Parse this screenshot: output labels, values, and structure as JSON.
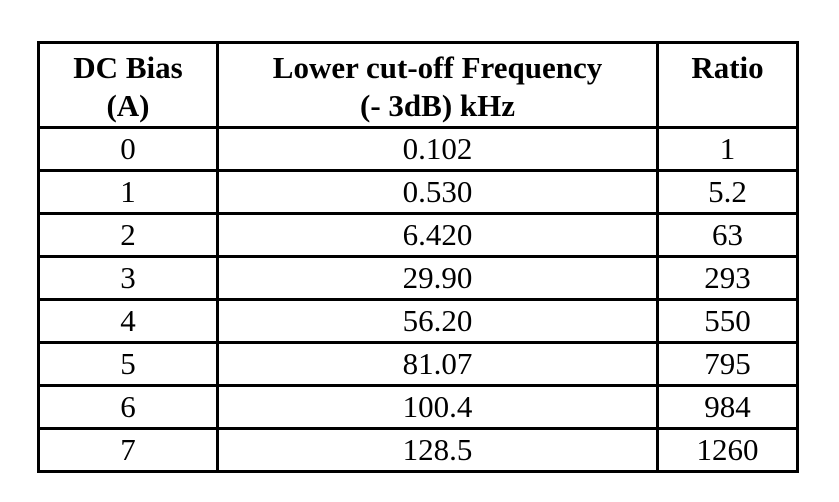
{
  "colors": {
    "border": "#000000",
    "text": "#000000",
    "background": "#ffffff"
  },
  "table": {
    "header": {
      "dc_bias": {
        "line1": "DC Bias",
        "line2": "(A)"
      },
      "frequency": {
        "line1": "Lower cut-off Frequency",
        "line2": "(- 3dB) kHz"
      },
      "ratio": {
        "line1": "Ratio",
        "line2": ""
      }
    },
    "rows": [
      {
        "dc_bias": "0",
        "frequency": "0.102",
        "ratio": "1"
      },
      {
        "dc_bias": "1",
        "frequency": "0.530",
        "ratio": "5.2"
      },
      {
        "dc_bias": "2",
        "frequency": "6.420",
        "ratio": "63"
      },
      {
        "dc_bias": "3",
        "frequency": "29.90",
        "ratio": "293"
      },
      {
        "dc_bias": "4",
        "frequency": "56.20",
        "ratio": "550"
      },
      {
        "dc_bias": "5",
        "frequency": "81.07",
        "ratio": "795"
      },
      {
        "dc_bias": "6",
        "frequency": "100.4",
        "ratio": "984"
      },
      {
        "dc_bias": "7",
        "frequency": "128.5",
        "ratio": "1260"
      }
    ]
  },
  "chart_data": {
    "type": "table",
    "columns": [
      "DC Bias (A)",
      "Lower cut-off Frequency (- 3dB) kHz",
      "Ratio"
    ],
    "dc_bias_A": [
      0,
      1,
      2,
      3,
      4,
      5,
      6,
      7
    ],
    "lower_cutoff_frequency_kHz": [
      0.102,
      0.53,
      6.42,
      29.9,
      56.2,
      81.07,
      100.4,
      128.5
    ],
    "ratio": [
      1,
      5.2,
      63,
      293,
      550,
      795,
      984,
      1260
    ]
  }
}
